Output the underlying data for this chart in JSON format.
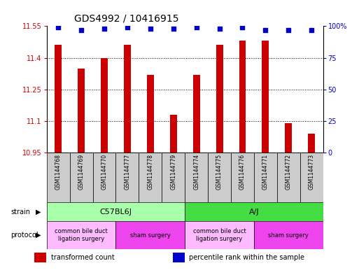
{
  "title": "GDS4992 / 10416915",
  "samples": [
    "GSM1144768",
    "GSM1144769",
    "GSM1144770",
    "GSM1144777",
    "GSM1144778",
    "GSM1144779",
    "GSM1144774",
    "GSM1144775",
    "GSM1144776",
    "GSM1144771",
    "GSM1144772",
    "GSM1144773"
  ],
  "bar_values": [
    11.46,
    11.35,
    11.4,
    11.46,
    11.32,
    11.13,
    11.32,
    11.46,
    11.48,
    11.48,
    11.09,
    11.04
  ],
  "percentile_values": [
    99,
    97,
    98,
    99,
    98,
    98,
    99,
    98,
    99,
    97,
    97,
    97
  ],
  "ymin": 10.95,
  "ymax": 11.55,
  "bar_color": "#cc0000",
  "dot_color": "#0000cc",
  "yticks_left": [
    10.95,
    11.1,
    11.25,
    11.4,
    11.55
  ],
  "yticks_right_vals": [
    0,
    25,
    50,
    75,
    100
  ],
  "yticks_right_labels": [
    "0",
    "25",
    "50",
    "75",
    "100%"
  ],
  "strain_groups": [
    {
      "label": "C57BL6J",
      "start": 0,
      "end": 6,
      "color": "#aaffaa"
    },
    {
      "label": "A/J",
      "start": 6,
      "end": 12,
      "color": "#44dd44"
    }
  ],
  "protocol_groups": [
    {
      "label": "common bile duct\nligation surgery",
      "start": 0,
      "end": 3,
      "color": "#ffbbff"
    },
    {
      "label": "sham surgery",
      "start": 3,
      "end": 6,
      "color": "#ee44ee"
    },
    {
      "label": "common bile duct\nligation surgery",
      "start": 6,
      "end": 9,
      "color": "#ffbbff"
    },
    {
      "label": "sham surgery",
      "start": 9,
      "end": 12,
      "color": "#ee44ee"
    }
  ],
  "legend_items": [
    {
      "label": "transformed count",
      "color": "#cc0000"
    },
    {
      "label": "percentile rank within the sample",
      "color": "#0000cc"
    }
  ],
  "bar_width": 0.3,
  "sample_box_color": "#cccccc",
  "fig_width": 5.13,
  "fig_height": 3.93,
  "fig_dpi": 100
}
